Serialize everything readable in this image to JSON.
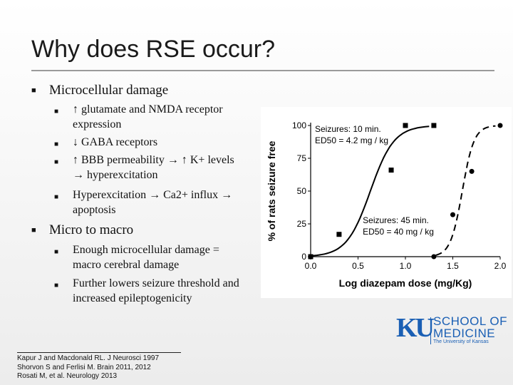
{
  "slide": {
    "title": "Why does RSE occur?",
    "bullets": [
      {
        "text": "Microcellular damage",
        "sub": [
          "↑ glutamate and NMDA receptor expression",
          "↓ GABA receptors",
          "↑ BBB permeability → ↑ K+ levels → hyperexcitation",
          "Hyperexcitation → Ca2+ influx → apoptosis"
        ]
      },
      {
        "text": "Micro to macro",
        "sub": [
          "Enough microcellular damage = macro cerebral damage",
          "Further lowers seizure threshold and increased epileptogenicity"
        ]
      }
    ],
    "references": [
      "Kapur J and Macdonald RL. J Neurosci 1997",
      "Shorvon S and Ferlisi M. Brain 2011, 2012",
      "Rosati M, et al. Neurology 2013"
    ],
    "logo": {
      "mark": "KU",
      "line1": "SCHOOL OF",
      "line2": "MEDICINE",
      "line3": "The University of Kansas",
      "color": "#1a5fb4"
    }
  },
  "chart_data": {
    "type": "scatter",
    "xlabel": "Log diazepam dose (mg/Kg)",
    "ylabel": "% of rats seizure free",
    "xlim": [
      0.0,
      2.0
    ],
    "ylim": [
      0,
      100
    ],
    "xticks": [
      "0.0",
      "0.5",
      "1.0",
      "1.5",
      "2.0"
    ],
    "yticks": [
      "0",
      "25",
      "50",
      "75",
      "100"
    ],
    "series": [
      {
        "name": "Seizures: 10 min.",
        "annotation": "ED50 = 4.2 mg / kg",
        "marker": "square",
        "line": "solid",
        "x": [
          0.0,
          0.3,
          0.85,
          1.0,
          1.3
        ],
        "y": [
          0,
          17,
          66,
          100,
          100
        ]
      },
      {
        "name": "Seizures: 45 min.",
        "annotation": "ED50 = 40 mg / kg",
        "marker": "circle",
        "line": "dashed",
        "x": [
          1.3,
          1.5,
          1.7,
          2.0
        ],
        "y": [
          0,
          32,
          65,
          100
        ]
      }
    ]
  }
}
